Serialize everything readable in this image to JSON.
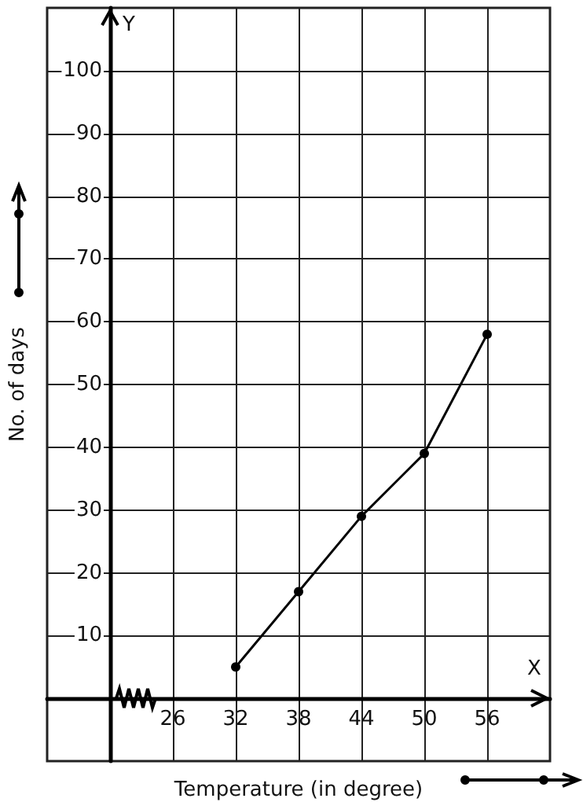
{
  "chart_data": {
    "type": "line",
    "xlabel": "Temperature (in degree)",
    "ylabel": "No. of days",
    "x": [
      32,
      38,
      44,
      50,
      56
    ],
    "series": [
      {
        "color": "#000000",
        "values": [
          5,
          17,
          29,
          39,
          58
        ]
      }
    ],
    "xlim": [
      14,
      62
    ],
    "ylim": [
      -10,
      110
    ],
    "xticks": [
      {
        "value": 20,
        "label": null
      },
      26,
      32,
      38,
      44,
      50,
      56
    ],
    "yticks": [
      {
        "value": 0,
        "label": null
      },
      10,
      20,
      30,
      40,
      50,
      60,
      70,
      80,
      90,
      100
    ],
    "annotations": [
      "X",
      "Y"
    ],
    "grid": true,
    "marker": "circle",
    "line_style": "solid"
  }
}
